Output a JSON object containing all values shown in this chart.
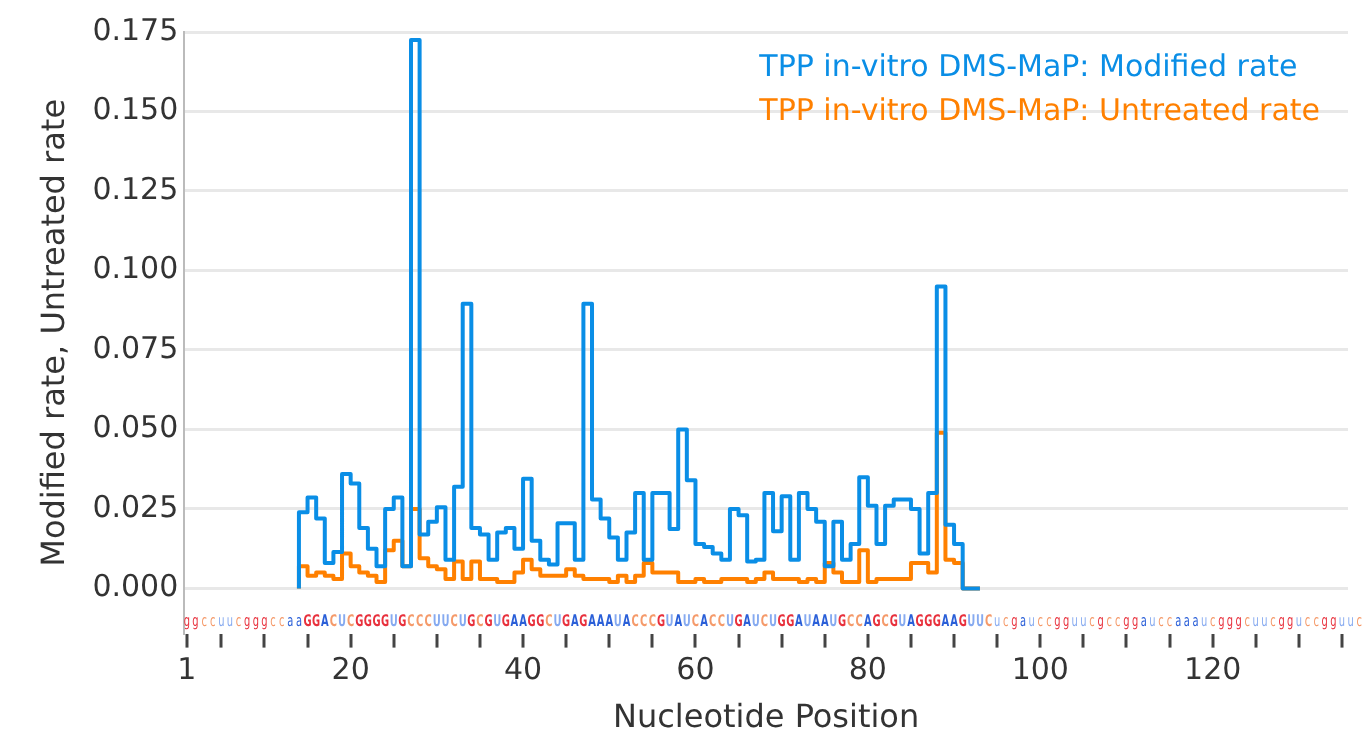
{
  "chart_data": {
    "type": "step",
    "xlabel": "Nucleotide Position",
    "ylabel": "Modified rate, Untreated rate",
    "xlim": [
      0.7,
      135.7
    ],
    "xticks": [
      1,
      {
        "value": 5,
        "label": null
      },
      {
        "value": 10,
        "label": null
      },
      {
        "value": 15,
        "label": null
      },
      20,
      {
        "value": 25,
        "label": null
      },
      {
        "value": 30,
        "label": null
      },
      {
        "value": 35,
        "label": null
      },
      40,
      {
        "value": 45,
        "label": null
      },
      {
        "value": 50,
        "label": null
      },
      {
        "value": 55,
        "label": null
      },
      60,
      {
        "value": 65,
        "label": null
      },
      {
        "value": 70,
        "label": null
      },
      {
        "value": 75,
        "label": null
      },
      80,
      {
        "value": 85,
        "label": null
      },
      {
        "value": 90,
        "label": null
      },
      {
        "value": 95,
        "label": null
      },
      100,
      {
        "value": 105,
        "label": null
      },
      {
        "value": 110,
        "label": null
      },
      {
        "value": 115,
        "label": null
      },
      120,
      {
        "value": 125,
        "label": null
      },
      {
        "value": 130,
        "label": null
      },
      {
        "value": 135,
        "label": null
      }
    ],
    "ylim": [
      -0.0142,
      0.175
    ],
    "yticks": [
      {
        "value": 0,
        "label": "0.000"
      },
      {
        "value": 0.025,
        "label": "0.025"
      },
      {
        "value": 0.05,
        "label": "0.050"
      },
      {
        "value": 0.075,
        "label": "0.075"
      },
      {
        "value": 0.1,
        "label": "0.100"
      },
      {
        "value": 0.125,
        "label": "0.125"
      },
      {
        "value": 0.15,
        "label": "0.150"
      },
      {
        "value": 0.175,
        "label": "0.175"
      }
    ],
    "grid": "y",
    "legend": "top right",
    "x": [
      14,
      15,
      16,
      17,
      18,
      19,
      20,
      21,
      22,
      23,
      24,
      25,
      26,
      27,
      28,
      29,
      30,
      31,
      32,
      33,
      34,
      35,
      36,
      37,
      38,
      39,
      40,
      41,
      42,
      43,
      44,
      45,
      46,
      47,
      48,
      49,
      50,
      51,
      52,
      53,
      54,
      55,
      56,
      57,
      58,
      59,
      60,
      61,
      62,
      63,
      64,
      65,
      66,
      67,
      68,
      69,
      70,
      71,
      72,
      73,
      74,
      75,
      76,
      77,
      78,
      79,
      80,
      81,
      82,
      83,
      84,
      85,
      86,
      87,
      88,
      89,
      90,
      91,
      92,
      93
    ],
    "series": [
      {
        "name": "TPP in-vitro DMS-MaP: Modified rate",
        "color": "#0a8ee6",
        "values": [
          0,
          0.024,
          0.0286,
          0.022,
          0.008,
          0.0115,
          0.036,
          0.033,
          0.019,
          0.0125,
          0.007,
          0.025,
          0.0286,
          0.007,
          0.1725,
          0.017,
          0.021,
          0.0255,
          0.009,
          0.032,
          0.0895,
          0.019,
          0.017,
          0.009,
          0.0176,
          0.019,
          0.0125,
          0.0345,
          0.015,
          0.009,
          0.0075,
          0.0205,
          0.0205,
          0.009,
          0.0895,
          0.028,
          0.022,
          0.016,
          0.009,
          0.0176,
          0.03,
          0.009,
          0.03,
          0.03,
          0.0187,
          0.05,
          0.034,
          0.014,
          0.013,
          0.011,
          0.009,
          0.025,
          0.023,
          0.0085,
          0.009,
          0.03,
          0.018,
          0.029,
          0.009,
          0.03,
          0.025,
          0.021,
          0.007,
          0.021,
          0.009,
          0.014,
          0.035,
          0.026,
          0.014,
          0.026,
          0.028,
          0.028,
          0.025,
          0.011,
          0.03,
          0.095,
          0.02,
          0.014,
          0,
          0
        ]
      },
      {
        "name": "TPP in-vitro DMS-MaP: Untreated rate",
        "color": "#ff8000",
        "values": [
          0,
          0.007,
          0.004,
          0.005,
          0.004,
          0.003,
          0.011,
          0.007,
          0.005,
          0.004,
          0.002,
          0.012,
          0.015,
          0.007,
          0.025,
          0.0095,
          0.007,
          0.006,
          0.003,
          0.0085,
          0.003,
          0.0085,
          0.003,
          0.003,
          0.002,
          0.002,
          0.005,
          0.009,
          0.006,
          0.004,
          0.004,
          0.004,
          0.006,
          0.004,
          0.003,
          0.003,
          0.003,
          0.002,
          0.004,
          0.002,
          0.004,
          0.008,
          0.005,
          0.005,
          0.005,
          0.002,
          0.002,
          0.003,
          0.002,
          0.002,
          0.003,
          0.003,
          0.003,
          0.002,
          0.003,
          0.005,
          0.003,
          0.003,
          0.003,
          0.002,
          0.003,
          0.002,
          0.008,
          0.005,
          0.002,
          0.002,
          0.012,
          0.002,
          0.003,
          0.003,
          0.003,
          0.003,
          0.008,
          0.008,
          0.005,
          0.049,
          0.009,
          0.008,
          0,
          0
        ]
      }
    ],
    "annotations": [
      "ggccuucgggccaaGGACUCGGGGUGCCCUUCUGCGUGAAGGCUGAGAAAUACCCGUAUCACCUGAUCUGGAUAAUGCCAGCGUAGGGAAGUUCucgauccgguucgccggauccaaaucgggcuucgguccgguuc"
    ]
  }
}
